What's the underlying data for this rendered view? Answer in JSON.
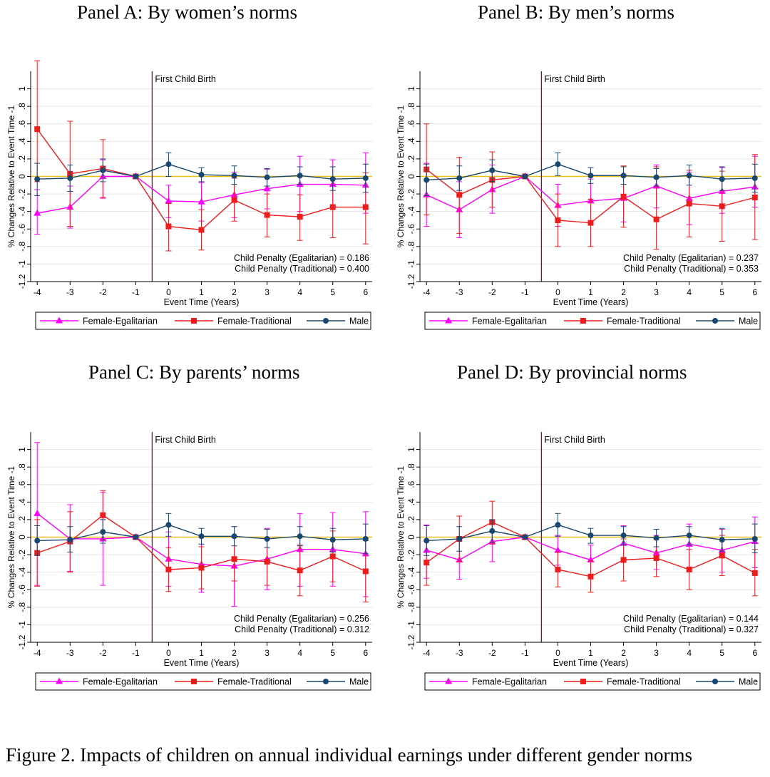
{
  "figure": {
    "caption": "Figure 2. Impacts of children on annual individual earnings under different gender norms"
  },
  "common": {
    "ylabel": "% Changes Relative to Event Time -1",
    "xlabel": "Event Time (Years)",
    "event_label": "First Child Birth",
    "x_ticks": [
      "-4",
      "-3",
      "-2",
      "-1",
      "0",
      "1",
      "2",
      "3",
      "4",
      "5",
      "6"
    ],
    "y_ticks": [
      "1",
      ".8",
      ".6",
      ".4",
      ".2",
      "0",
      "-.2",
      "-.4",
      "-.6",
      "-.8",
      "-1",
      "-1.2"
    ],
    "legend": [
      "Female-Egalitarian",
      "Female-Traditional",
      "Male"
    ],
    "colors": {
      "Female-Egalitarian": "#ff00ff",
      "Female-Traditional": "#ee1c1c",
      "Male": "#1a476f",
      "zero_line": "#e8c21a",
      "event_line": "#8b0a2a",
      "grid": "#e6e6e6"
    }
  },
  "chart_data": [
    {
      "type": "line",
      "panel_title": "Panel A: By women’s norms",
      "xlabel": "Event Time (Years)",
      "ylabel": "% Changes Relative to Event Time -1",
      "x": [
        -4,
        -3,
        -2,
        -1,
        0,
        1,
        2,
        3,
        4,
        5,
        6
      ],
      "ylim": [
        -1.2,
        1.2
      ],
      "event_line_at": -0.5,
      "annotations": [
        "Child Penalty (Egalitarian) = 0.186",
        "Child Penalty (Traditional) = 0.400"
      ],
      "series": [
        {
          "name": "Female-Egalitarian",
          "marker": "triangle",
          "values": [
            -0.42,
            -0.35,
            0.0,
            0.0,
            -0.28,
            -0.29,
            -0.21,
            -0.14,
            -0.09,
            -0.09,
            -0.1
          ],
          "ci_low": [
            -0.66,
            -0.59,
            -0.25,
            0.0,
            -0.47,
            -0.51,
            -0.47,
            -0.37,
            -0.4,
            -0.35,
            -0.42
          ],
          "ci_high": [
            -0.15,
            -0.11,
            0.19,
            0.0,
            -0.1,
            -0.07,
            0.05,
            0.08,
            0.23,
            0.19,
            0.27
          ]
        },
        {
          "name": "Female-Traditional",
          "marker": "square",
          "values": [
            0.54,
            0.03,
            0.09,
            0.0,
            -0.57,
            -0.61,
            -0.27,
            -0.44,
            -0.46,
            -0.35,
            -0.35
          ],
          "ci_low": [
            -0.06,
            -0.57,
            -0.24,
            0.0,
            -0.85,
            -0.84,
            -0.51,
            -0.69,
            -0.73,
            -0.7,
            -0.77
          ],
          "ci_high": [
            1.32,
            0.63,
            0.42,
            0.0,
            -0.31,
            -0.38,
            -0.02,
            -0.2,
            -0.21,
            -0.02,
            0.04
          ]
        },
        {
          "name": "Male",
          "marker": "circle",
          "values": [
            -0.03,
            -0.02,
            0.07,
            0.0,
            0.14,
            0.02,
            0.01,
            -0.01,
            0.01,
            -0.03,
            -0.02
          ],
          "ci_low": [
            -0.22,
            -0.17,
            -0.06,
            0.0,
            0.0,
            -0.06,
            -0.09,
            -0.11,
            -0.09,
            -0.16,
            -0.18
          ],
          "ci_high": [
            0.15,
            0.13,
            0.2,
            0.0,
            0.27,
            0.1,
            0.12,
            0.09,
            0.11,
            0.11,
            0.14
          ]
        }
      ]
    },
    {
      "type": "line",
      "panel_title": "Panel B: By men’s norms",
      "xlabel": "Event Time (Years)",
      "ylabel": "% Changes Relative to Event Time -1",
      "x": [
        -4,
        -3,
        -2,
        -1,
        0,
        1,
        2,
        3,
        4,
        5,
        6
      ],
      "ylim": [
        -1.2,
        1.2
      ],
      "event_line_at": -0.5,
      "annotations": [
        "Child Penalty (Egalitarian) = 0.237",
        "Child Penalty (Traditional) = 0.353"
      ],
      "series": [
        {
          "name": "Female-Egalitarian",
          "marker": "triangle",
          "values": [
            -0.21,
            -0.38,
            -0.15,
            0.0,
            -0.33,
            -0.28,
            -0.25,
            -0.11,
            -0.25,
            -0.17,
            -0.12
          ],
          "ci_low": [
            -0.57,
            -0.7,
            -0.42,
            0.0,
            -0.57,
            -0.52,
            -0.52,
            -0.36,
            -0.55,
            -0.42,
            -0.35
          ],
          "ci_high": [
            0.15,
            -0.06,
            0.13,
            0.0,
            -0.09,
            -0.03,
            0.02,
            0.13,
            0.05,
            0.1,
            0.23
          ]
        },
        {
          "name": "Female-Traditional",
          "marker": "square",
          "values": [
            0.08,
            -0.21,
            -0.04,
            0.0,
            -0.5,
            -0.53,
            -0.23,
            -0.49,
            -0.31,
            -0.34,
            -0.24
          ],
          "ci_low": [
            -0.44,
            -0.65,
            -0.35,
            0.0,
            -0.8,
            -0.8,
            -0.58,
            -0.83,
            -0.69,
            -0.74,
            -0.72
          ],
          "ci_high": [
            0.6,
            0.22,
            0.28,
            0.0,
            -0.2,
            -0.26,
            0.12,
            0.11,
            0.07,
            0.06,
            0.25
          ]
        },
        {
          "name": "Male",
          "marker": "circle",
          "values": [
            -0.04,
            -0.02,
            0.07,
            0.0,
            0.14,
            0.01,
            0.01,
            -0.01,
            0.01,
            -0.03,
            -0.02
          ],
          "ci_low": [
            -0.22,
            -0.16,
            -0.06,
            0.0,
            0.01,
            -0.08,
            -0.09,
            -0.11,
            -0.1,
            -0.16,
            -0.18
          ],
          "ci_high": [
            0.14,
            0.12,
            0.19,
            0.0,
            0.27,
            0.1,
            0.11,
            0.09,
            0.13,
            0.11,
            0.14
          ]
        }
      ]
    },
    {
      "type": "line",
      "panel_title": "Panel C: By parents’ norms",
      "xlabel": "Event Time (Years)",
      "ylabel": "% Changes Relative to Event Time -1",
      "x": [
        -4,
        -3,
        -2,
        -1,
        0,
        1,
        2,
        3,
        4,
        5,
        6
      ],
      "ylim": [
        -1.2,
        1.2
      ],
      "event_line_at": -0.5,
      "annotations": [
        "Child Penalty (Egalitarian) = 0.256",
        "Child Penalty (Traditional) = 0.312"
      ],
      "series": [
        {
          "name": "Female-Egalitarian",
          "marker": "triangle",
          "values": [
            0.27,
            -0.02,
            -0.02,
            0.0,
            -0.25,
            -0.31,
            -0.33,
            -0.25,
            -0.14,
            -0.14,
            -0.19
          ],
          "ci_low": [
            -0.55,
            -0.39,
            -0.55,
            0.0,
            -0.56,
            -0.63,
            -0.79,
            -0.6,
            -0.56,
            -0.56,
            -0.68
          ],
          "ci_high": [
            1.08,
            0.37,
            0.51,
            0.0,
            0.06,
            0.0,
            0.12,
            0.1,
            0.27,
            0.28,
            0.29
          ]
        },
        {
          "name": "Female-Traditional",
          "marker": "square",
          "values": [
            -0.18,
            -0.05,
            0.25,
            0.0,
            -0.37,
            -0.35,
            -0.25,
            -0.28,
            -0.38,
            -0.22,
            -0.39
          ],
          "ci_low": [
            -0.56,
            -0.4,
            -0.03,
            0.0,
            -0.62,
            -0.59,
            -0.5,
            -0.55,
            -0.67,
            -0.51,
            -0.74
          ],
          "ci_high": [
            0.2,
            0.29,
            0.53,
            0.0,
            -0.12,
            -0.11,
            0.0,
            -0.01,
            -0.09,
            0.07,
            -0.04
          ]
        },
        {
          "name": "Male",
          "marker": "circle",
          "values": [
            -0.04,
            -0.03,
            0.06,
            0.0,
            0.14,
            0.01,
            0.01,
            -0.02,
            0.01,
            -0.03,
            -0.02
          ],
          "ci_low": [
            -0.21,
            -0.17,
            -0.07,
            0.0,
            0.01,
            -0.08,
            -0.1,
            -0.12,
            -0.1,
            -0.17,
            -0.19
          ],
          "ci_high": [
            0.13,
            0.12,
            0.2,
            0.0,
            0.27,
            0.1,
            0.12,
            0.09,
            0.12,
            0.1,
            0.15
          ]
        }
      ]
    },
    {
      "type": "line",
      "panel_title": "Panel D: By provincial norms",
      "xlabel": "Event Time (Years)",
      "ylabel": "% Changes Relative to Event Time -1",
      "x": [
        -4,
        -3,
        -2,
        -1,
        0,
        1,
        2,
        3,
        4,
        5,
        6
      ],
      "ylim": [
        -1.2,
        1.2
      ],
      "event_line_at": -0.5,
      "annotations": [
        "Child Penalty (Egalitarian) = 0.144",
        "Child Penalty (Traditional) = 0.327"
      ],
      "series": [
        {
          "name": "Female-Egalitarian",
          "marker": "triangle",
          "values": [
            -0.15,
            -0.26,
            -0.05,
            0.0,
            -0.15,
            -0.26,
            -0.07,
            -0.18,
            -0.08,
            -0.15,
            -0.05
          ],
          "ci_low": [
            -0.47,
            -0.48,
            -0.28,
            0.0,
            -0.32,
            -0.43,
            -0.27,
            -0.37,
            -0.34,
            -0.4,
            -0.35
          ],
          "ci_high": [
            0.14,
            -0.03,
            0.18,
            0.0,
            0.02,
            -0.09,
            0.13,
            0.02,
            0.15,
            0.09,
            0.23
          ]
        },
        {
          "name": "Female-Traditional",
          "marker": "square",
          "values": [
            -0.29,
            -0.02,
            0.17,
            0.0,
            -0.37,
            -0.45,
            -0.26,
            -0.24,
            -0.37,
            -0.21,
            -0.41
          ],
          "ci_low": [
            -0.55,
            -0.28,
            -0.08,
            0.0,
            -0.57,
            -0.63,
            -0.5,
            -0.45,
            -0.6,
            -0.44,
            -0.67
          ],
          "ci_high": [
            -0.03,
            0.24,
            0.41,
            0.0,
            -0.17,
            -0.27,
            -0.02,
            -0.03,
            -0.14,
            0.02,
            -0.14
          ]
        },
        {
          "name": "Male",
          "marker": "circle",
          "values": [
            -0.04,
            -0.02,
            0.07,
            0.0,
            0.14,
            0.02,
            0.02,
            -0.01,
            0.02,
            -0.03,
            -0.02
          ],
          "ci_low": [
            -0.21,
            -0.16,
            -0.06,
            0.0,
            0.01,
            -0.07,
            -0.09,
            -0.11,
            -0.09,
            -0.16,
            -0.18
          ],
          "ci_high": [
            0.13,
            0.12,
            0.2,
            0.0,
            0.27,
            0.1,
            0.12,
            0.09,
            0.12,
            0.1,
            0.15
          ]
        }
      ]
    }
  ]
}
